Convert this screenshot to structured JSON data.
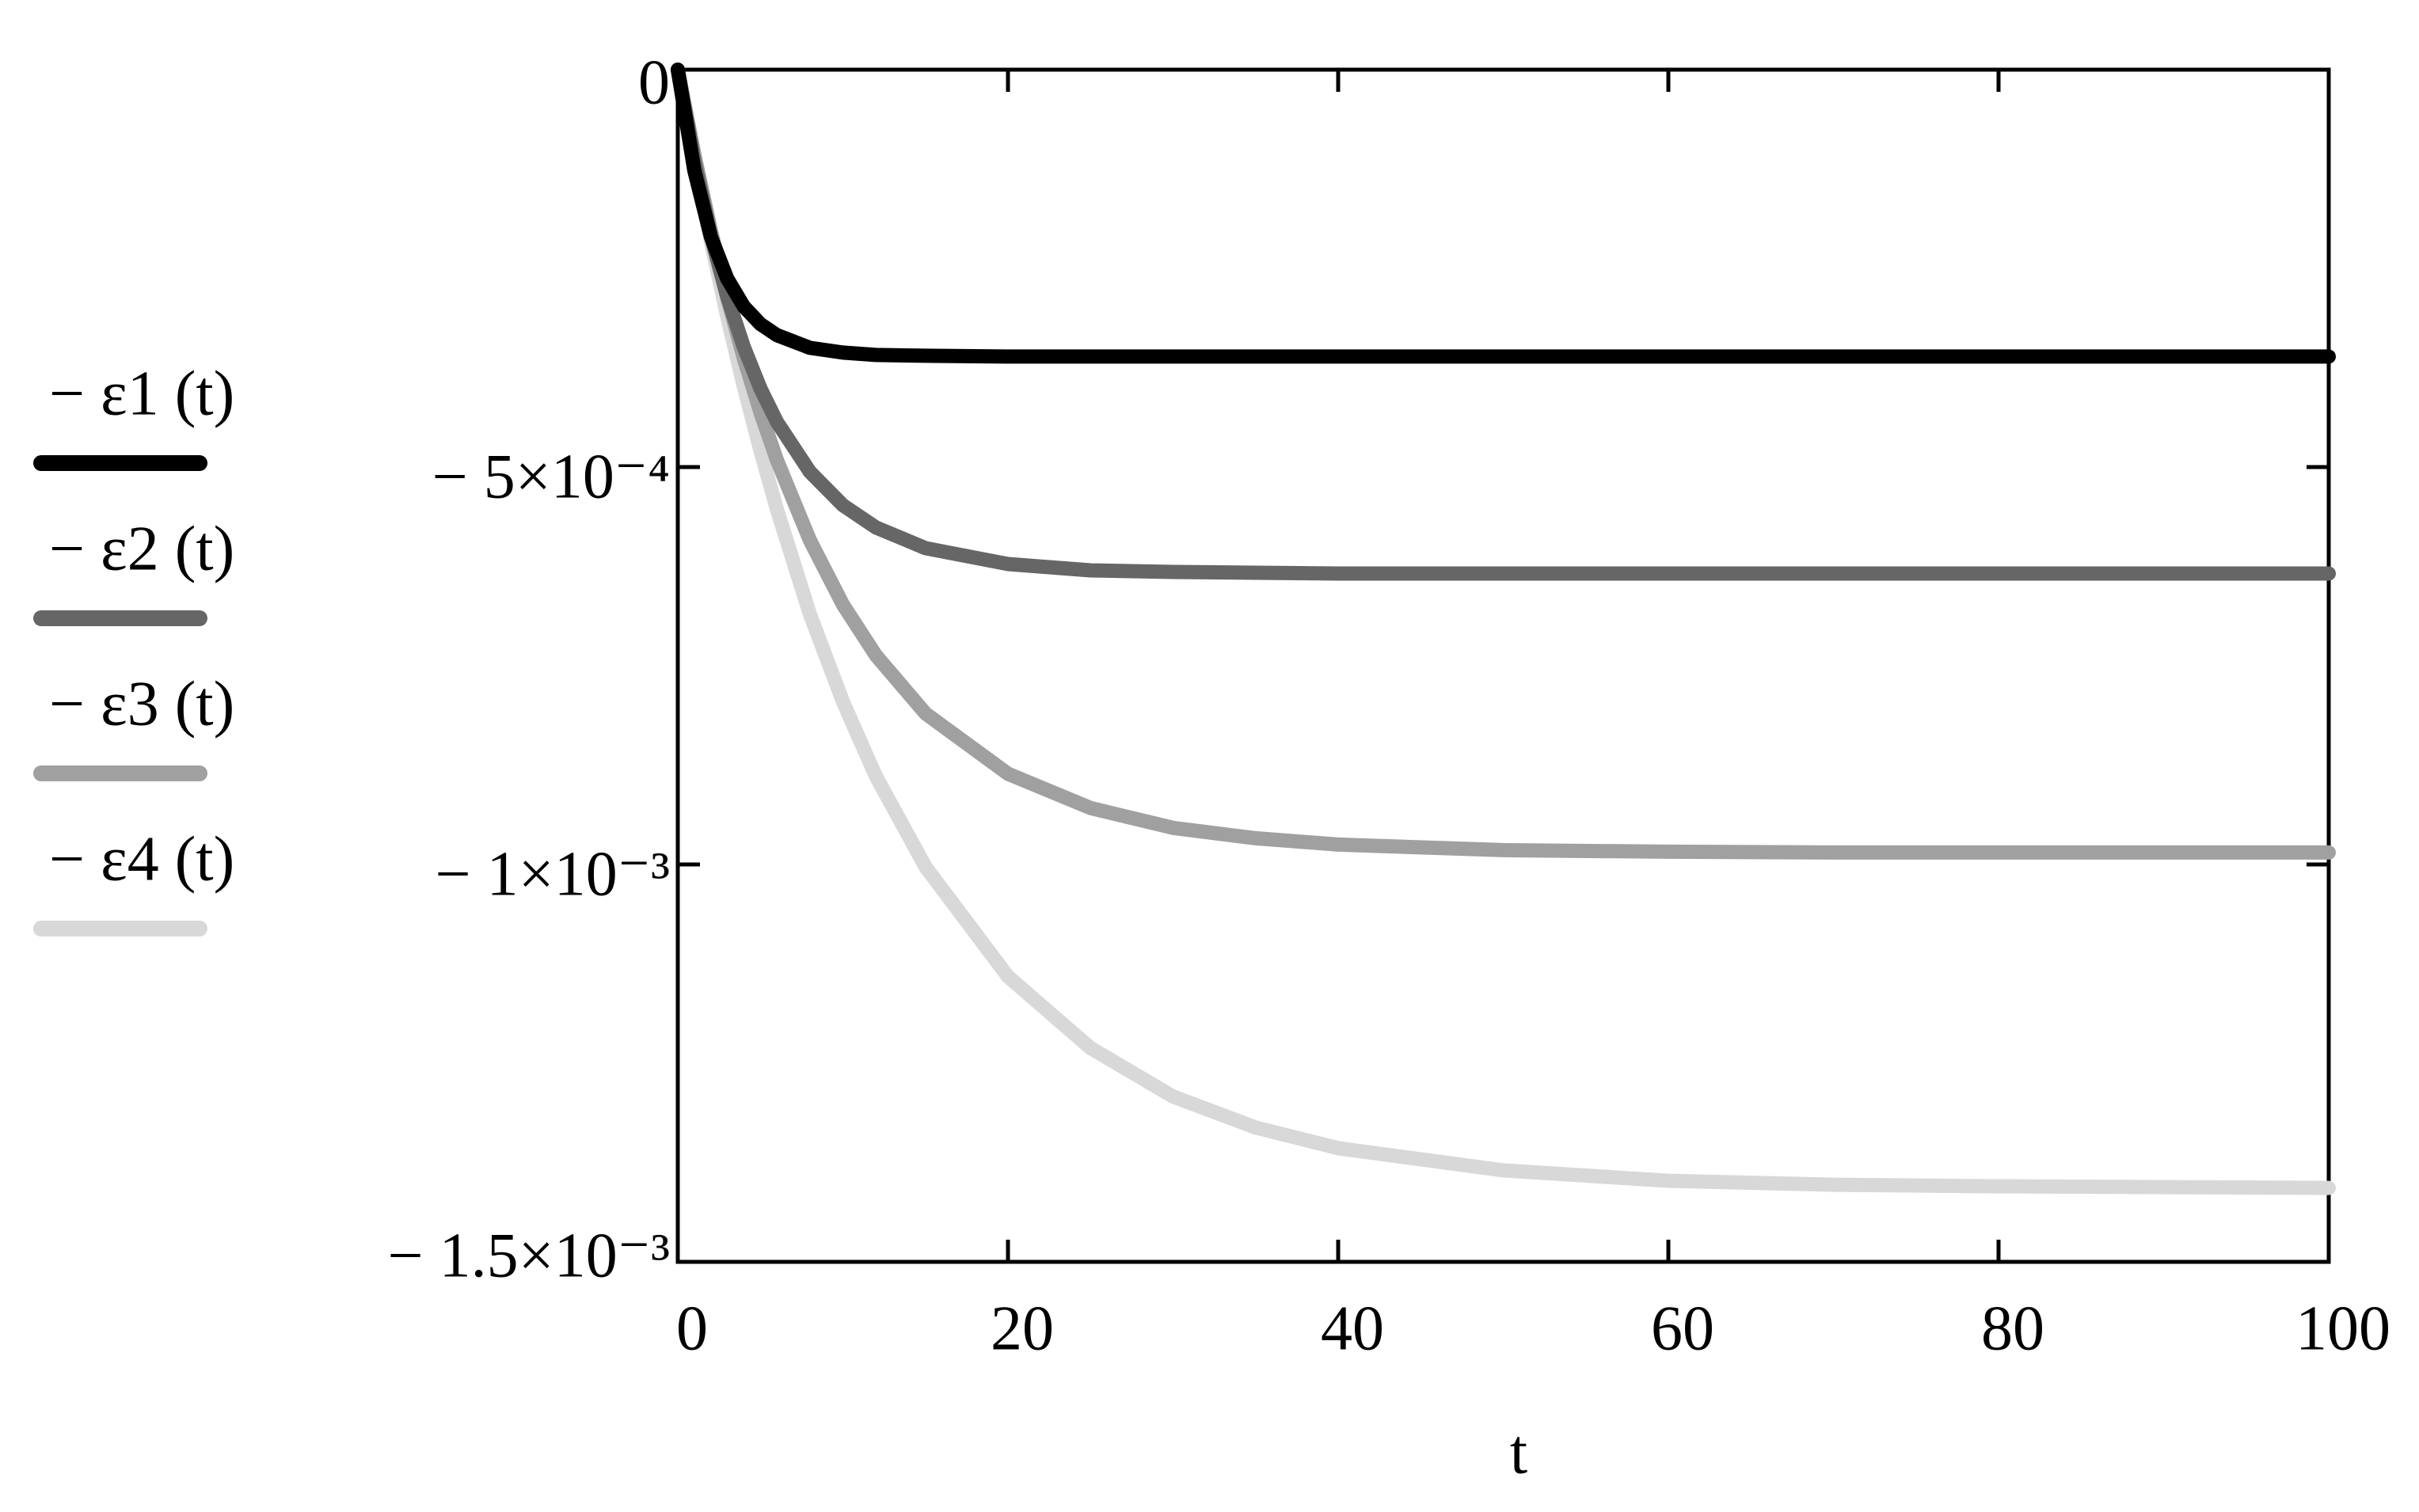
{
  "chart_data": {
    "type": "line",
    "x_label": "t",
    "x": [
      0,
      1,
      2,
      3,
      4,
      5,
      6,
      8,
      10,
      12,
      15,
      20,
      25,
      30,
      35,
      40,
      50,
      60,
      70,
      80,
      90,
      100
    ],
    "series": [
      {
        "name": "− ε1 (t)",
        "color": "#000000",
        "values": [
          0,
          -0.000127,
          -0.00021,
          -0.000263,
          -0.000298,
          -0.00032,
          -0.000334,
          -0.00035,
          -0.000356,
          -0.000359,
          -0.00036,
          -0.000361,
          -0.000361,
          -0.000361,
          -0.000361,
          -0.000361,
          -0.000361,
          -0.000361,
          -0.000361,
          -0.000361,
          -0.000361,
          -0.000361
        ]
      },
      {
        "name": "− ε2 (t)",
        "color": "#666666",
        "values": [
          0,
          -0.000115,
          -0.000209,
          -0.000286,
          -0.000349,
          -0.000401,
          -0.000443,
          -0.000506,
          -0.000548,
          -0.000576,
          -0.000602,
          -0.000622,
          -0.00063,
          -0.000632,
          -0.000633,
          -0.000634,
          -0.000634,
          -0.000634,
          -0.000634,
          -0.000634,
          -0.000634,
          -0.000634
        ]
      },
      {
        "name": "− ε3 (t)",
        "color": "#a0a0a0",
        "values": [
          0,
          -0.000107,
          -0.000202,
          -0.000287,
          -0.000363,
          -0.000431,
          -0.000491,
          -0.000592,
          -0.000673,
          -0.000737,
          -0.00081,
          -0.000886,
          -0.000929,
          -0.000954,
          -0.000967,
          -0.000975,
          -0.000982,
          -0.000984,
          -0.000985,
          -0.000985,
          -0.000985,
          -0.000985
        ]
      },
      {
        "name": "− ε4 (t)",
        "color": "#d8d8d8",
        "values": [
          0,
          -0.000112,
          -0.000216,
          -0.000311,
          -0.000399,
          -0.000479,
          -0.000553,
          -0.000685,
          -0.000795,
          -0.000889,
          -0.001003,
          -0.001141,
          -0.001231,
          -0.001292,
          -0.001331,
          -0.001357,
          -0.001385,
          -0.001398,
          -0.001403,
          -0.001405,
          -0.001406,
          -0.001407
        ]
      }
    ],
    "xlim": [
      0,
      100
    ],
    "xticks": [
      0,
      20,
      40,
      60,
      80,
      100
    ],
    "ylim": [
      -0.0015,
      0
    ],
    "yticks": [
      0,
      {
        "value": -0.0005,
        "label": "− 5×10⁻⁴"
      },
      {
        "value": -0.001,
        "label": "− 1×10⁻³"
      },
      {
        "value": -0.0015,
        "label": "− 1.5×10⁻³"
      }
    ],
    "grid": false,
    "legend": "left"
  }
}
